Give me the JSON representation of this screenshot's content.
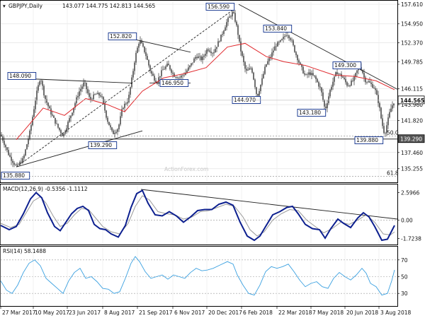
{
  "header": {
    "symbol": "GBPJPY,Daily",
    "ohlc": "143.077 144.775 142.813 144.565"
  },
  "watermark": "ActionForex.com",
  "chart_data": [
    {
      "type": "candlestick",
      "panel": "price",
      "ylim": [
        133.5,
        158.0
      ],
      "y_ticks": [
        "157.610",
        "154.950",
        "152.370",
        "149.785",
        "146.115",
        "143.960",
        "141.820",
        "139.290",
        "137.460",
        "135.255"
      ],
      "x_categories": [
        "27 Mar 2017",
        "10 May 2017",
        "23 Jun 2017",
        "8 Aug 2017",
        "21 Sep 2017",
        "6 Nov 2017",
        "20 Dec 2017",
        "6 Feb 2018",
        "22 Mar 2018",
        "7 May 2018",
        "20 Jun 2018",
        "3 Aug 2018"
      ],
      "close_path": [
        [
          0,
          139.9
        ],
        [
          12,
          137.0
        ],
        [
          22,
          135.5
        ],
        [
          32,
          136.6
        ],
        [
          42,
          140.6
        ],
        [
          50,
          145.2
        ],
        [
          56,
          147.8
        ],
        [
          62,
          145.0
        ],
        [
          70,
          143.0
        ],
        [
          80,
          141.0
        ],
        [
          88,
          139.7
        ],
        [
          100,
          142.8
        ],
        [
          110,
          145.6
        ],
        [
          118,
          147.0
        ],
        [
          126,
          144.6
        ],
        [
          134,
          145.4
        ],
        [
          142,
          145.2
        ],
        [
          150,
          142.0
        ],
        [
          158,
          140.0
        ],
        [
          166,
          140.8
        ],
        [
          172,
          143.6
        ],
        [
          180,
          144.6
        ],
        [
          186,
          148.0
        ],
        [
          190,
          150.5
        ],
        [
          196,
          152.8
        ],
        [
          204,
          151.0
        ],
        [
          212,
          148.3
        ],
        [
          220,
          147.0
        ],
        [
          228,
          148.6
        ],
        [
          236,
          149.4
        ],
        [
          244,
          148.0
        ],
        [
          252,
          147.6
        ],
        [
          260,
          148.2
        ],
        [
          268,
          149.3
        ],
        [
          276,
          150.6
        ],
        [
          284,
          150.1
        ],
        [
          292,
          151.6
        ],
        [
          300,
          151.0
        ],
        [
          310,
          153.0
        ],
        [
          320,
          155.4
        ],
        [
          328,
          156.6
        ],
        [
          334,
          154.2
        ],
        [
          338,
          151.7
        ],
        [
          346,
          148.4
        ],
        [
          354,
          149.0
        ],
        [
          362,
          145.0
        ],
        [
          368,
          147.0
        ],
        [
          374,
          149.3
        ],
        [
          380,
          150.3
        ],
        [
          388,
          152.0
        ],
        [
          396,
          152.6
        ],
        [
          404,
          153.7
        ],
        [
          410,
          152.8
        ],
        [
          416,
          151.0
        ],
        [
          422,
          149.5
        ],
        [
          430,
          147.8
        ],
        [
          436,
          148.3
        ],
        [
          444,
          147.6
        ],
        [
          452,
          146.0
        ],
        [
          458,
          143.2
        ],
        [
          466,
          146.3
        ],
        [
          474,
          148.4
        ],
        [
          482,
          147.8
        ],
        [
          490,
          146.5
        ],
        [
          498,
          147.3
        ],
        [
          506,
          149.3
        ],
        [
          510,
          148.7
        ],
        [
          514,
          147.3
        ],
        [
          520,
          147.0
        ],
        [
          528,
          146.2
        ],
        [
          534,
          144.0
        ],
        [
          538,
          141.5
        ],
        [
          542,
          139.9
        ],
        [
          546,
          141.6
        ],
        [
          550,
          143.2
        ],
        [
          556,
          144.57
        ]
      ],
      "ma_path": [
        [
          22,
          139.2
        ],
        [
          60,
          143.5
        ],
        [
          90,
          142.5
        ],
        [
          120,
          144.8
        ],
        [
          150,
          144.0
        ],
        [
          175,
          143.0
        ],
        [
          200,
          145.8
        ],
        [
          230,
          147.6
        ],
        [
          260,
          148.2
        ],
        [
          290,
          149.0
        ],
        [
          320,
          151.8
        ],
        [
          345,
          152.3
        ],
        [
          375,
          150.5
        ],
        [
          400,
          149.8
        ],
        [
          430,
          149.3
        ],
        [
          470,
          148.0
        ],
        [
          500,
          147.8
        ],
        [
          530,
          147.2
        ],
        [
          556,
          146.0
        ]
      ],
      "labels": [
        "156.590",
        "153.840",
        "152.820",
        "148.090",
        "146.950",
        "144.970",
        "149.300",
        "143.180",
        "139.880",
        "139.290",
        "135.880"
      ],
      "fib_labels": [
        "50.0",
        "61.8"
      ],
      "current_price": "144.565",
      "h_level": "139.290",
      "annotations_h_level_x_range": [
        0,
        560
      ]
    },
    {
      "type": "line",
      "panel": "macd",
      "title": "MACD(12,26,9) -0.5356 -1.1112",
      "ylim": [
        -2.3,
        3.3
      ],
      "y_ticks": [
        "2.5966",
        "0.00",
        "-1.7238"
      ],
      "macd": [
        [
          0,
          -0.5
        ],
        [
          12,
          -0.9
        ],
        [
          22,
          -0.6
        ],
        [
          32,
          0.6
        ],
        [
          42,
          2.0
        ],
        [
          50,
          2.6
        ],
        [
          58,
          2.1
        ],
        [
          66,
          0.7
        ],
        [
          76,
          -0.6
        ],
        [
          84,
          -1.0
        ],
        [
          90,
          -0.4
        ],
        [
          100,
          0.6
        ],
        [
          108,
          1.1
        ],
        [
          116,
          1.3
        ],
        [
          124,
          0.9
        ],
        [
          132,
          -0.4
        ],
        [
          140,
          -0.8
        ],
        [
          148,
          -0.9
        ],
        [
          156,
          -1.3
        ],
        [
          166,
          -1.6
        ],
        [
          176,
          -0.5
        ],
        [
          184,
          1.2
        ],
        [
          192,
          2.5
        ],
        [
          200,
          2.8
        ],
        [
          208,
          1.6
        ],
        [
          218,
          0.5
        ],
        [
          228,
          0.4
        ],
        [
          238,
          0.8
        ],
        [
          248,
          0.4
        ],
        [
          258,
          -0.2
        ],
        [
          268,
          0.3
        ],
        [
          278,
          0.9
        ],
        [
          288,
          1.0
        ],
        [
          298,
          1.0
        ],
        [
          308,
          1.5
        ],
        [
          318,
          1.7
        ],
        [
          328,
          1.4
        ],
        [
          338,
          -0.2
        ],
        [
          348,
          -1.5
        ],
        [
          358,
          -1.9
        ],
        [
          366,
          -1.5
        ],
        [
          374,
          -0.6
        ],
        [
          384,
          0.5
        ],
        [
          394,
          0.8
        ],
        [
          404,
          1.2
        ],
        [
          412,
          1.3
        ],
        [
          420,
          0.6
        ],
        [
          430,
          -0.4
        ],
        [
          440,
          -0.8
        ],
        [
          450,
          -0.9
        ],
        [
          458,
          -1.7
        ],
        [
          466,
          -0.8
        ],
        [
          476,
          0.1
        ],
        [
          484,
          -0.3
        ],
        [
          494,
          -0.7
        ],
        [
          504,
          0.2
        ],
        [
          512,
          0.7
        ],
        [
          520,
          0.3
        ],
        [
          528,
          -0.6
        ],
        [
          538,
          -1.9
        ],
        [
          546,
          -1.8
        ],
        [
          556,
          -0.5
        ]
      ],
      "signal": [
        [
          0,
          -0.3
        ],
        [
          14,
          -0.7
        ],
        [
          26,
          -0.4
        ],
        [
          36,
          0.7
        ],
        [
          46,
          1.8
        ],
        [
          56,
          2.2
        ],
        [
          64,
          1.6
        ],
        [
          74,
          0.4
        ],
        [
          84,
          -0.6
        ],
        [
          94,
          -0.3
        ],
        [
          104,
          0.5
        ],
        [
          114,
          1.1
        ],
        [
          124,
          1.0
        ],
        [
          134,
          0.2
        ],
        [
          144,
          -0.6
        ],
        [
          156,
          -1.1
        ],
        [
          168,
          -1.3
        ],
        [
          180,
          -0.3
        ],
        [
          190,
          1.3
        ],
        [
          200,
          2.3
        ],
        [
          210,
          1.9
        ],
        [
          222,
          0.8
        ],
        [
          234,
          0.6
        ],
        [
          246,
          0.5
        ],
        [
          258,
          0.1
        ],
        [
          270,
          0.3
        ],
        [
          282,
          0.8
        ],
        [
          294,
          0.9
        ],
        [
          306,
          1.2
        ],
        [
          318,
          1.5
        ],
        [
          330,
          1.3
        ],
        [
          342,
          0.3
        ],
        [
          352,
          -0.9
        ],
        [
          362,
          -1.5
        ],
        [
          372,
          -1.1
        ],
        [
          384,
          0.0
        ],
        [
          396,
          0.6
        ],
        [
          408,
          1.0
        ],
        [
          420,
          0.9
        ],
        [
          432,
          0.0
        ],
        [
          444,
          -0.6
        ],
        [
          456,
          -1.2
        ],
        [
          468,
          -0.8
        ],
        [
          480,
          -0.2
        ],
        [
          492,
          -0.4
        ],
        [
          504,
          0.0
        ],
        [
          516,
          0.5
        ],
        [
          528,
          -0.2
        ],
        [
          540,
          -1.3
        ],
        [
          550,
          -1.4
        ],
        [
          556,
          -1.11
        ]
      ]
    },
    {
      "type": "line",
      "panel": "rsi",
      "title": "RSI(14) 58.1488",
      "ylim": [
        15,
        85
      ],
      "y_ticks": [
        "70",
        "50",
        "30"
      ],
      "rsi": [
        [
          0,
          45
        ],
        [
          8,
          34
        ],
        [
          16,
          30
        ],
        [
          24,
          40
        ],
        [
          32,
          55
        ],
        [
          40,
          66
        ],
        [
          48,
          70
        ],
        [
          56,
          63
        ],
        [
          64,
          48
        ],
        [
          72,
          42
        ],
        [
          80,
          36
        ],
        [
          88,
          30
        ],
        [
          96,
          45
        ],
        [
          104,
          55
        ],
        [
          112,
          60
        ],
        [
          120,
          48
        ],
        [
          128,
          50
        ],
        [
          136,
          44
        ],
        [
          144,
          36
        ],
        [
          152,
          35
        ],
        [
          160,
          30
        ],
        [
          168,
          32
        ],
        [
          176,
          48
        ],
        [
          184,
          66
        ],
        [
          190,
          74
        ],
        [
          196,
          68
        ],
        [
          204,
          56
        ],
        [
          212,
          48
        ],
        [
          220,
          50
        ],
        [
          228,
          52
        ],
        [
          236,
          47
        ],
        [
          244,
          52
        ],
        [
          252,
          50
        ],
        [
          260,
          48
        ],
        [
          268,
          55
        ],
        [
          276,
          60
        ],
        [
          284,
          57
        ],
        [
          292,
          58
        ],
        [
          300,
          60
        ],
        [
          310,
          64
        ],
        [
          320,
          68
        ],
        [
          328,
          65
        ],
        [
          334,
          52
        ],
        [
          342,
          40
        ],
        [
          350,
          30
        ],
        [
          358,
          28
        ],
        [
          366,
          40
        ],
        [
          374,
          56
        ],
        [
          382,
          62
        ],
        [
          390,
          60
        ],
        [
          398,
          62
        ],
        [
          406,
          65
        ],
        [
          414,
          56
        ],
        [
          422,
          46
        ],
        [
          430,
          38
        ],
        [
          438,
          42
        ],
        [
          446,
          44
        ],
        [
          454,
          38
        ],
        [
          462,
          36
        ],
        [
          470,
          48
        ],
        [
          478,
          55
        ],
        [
          486,
          50
        ],
        [
          494,
          46
        ],
        [
          502,
          52
        ],
        [
          510,
          60
        ],
        [
          516,
          54
        ],
        [
          522,
          42
        ],
        [
          530,
          38
        ],
        [
          538,
          28
        ],
        [
          546,
          30
        ],
        [
          552,
          45
        ],
        [
          556,
          58
        ]
      ]
    }
  ]
}
